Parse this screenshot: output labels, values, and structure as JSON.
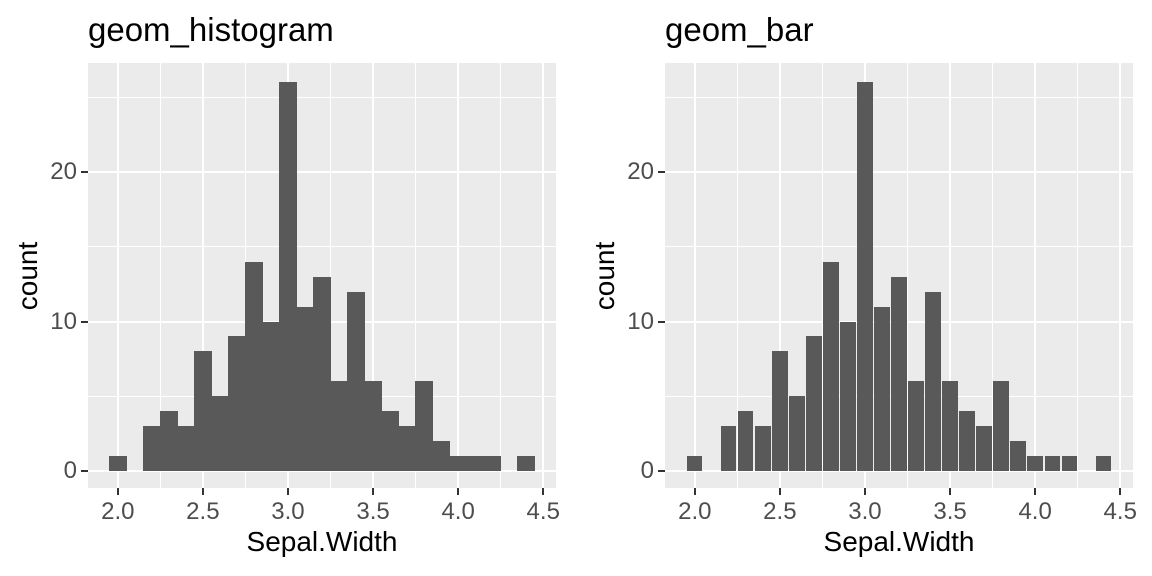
{
  "style": {
    "bar_color": "#595959",
    "panel_bg": "#EBEBEB",
    "grid_color": "#FFFFFF",
    "tick_mark_color": "#333333",
    "tick_label_color": "#4D4D4D",
    "title_color": "#000000",
    "background": "#FFFFFF"
  },
  "chart_data": [
    {
      "type": "bar",
      "subtype": "histogram",
      "title": "geom_histogram",
      "xlabel": "Sepal.Width",
      "ylabel": "count",
      "x": [
        2.0,
        2.1,
        2.2,
        2.3,
        2.4,
        2.5,
        2.6,
        2.7,
        2.8,
        2.9,
        3.0,
        3.1,
        3.2,
        3.3,
        3.4,
        3.5,
        3.6,
        3.7,
        3.8,
        3.9,
        4.0,
        4.1,
        4.2,
        4.3,
        4.4
      ],
      "counts": [
        1,
        0,
        3,
        4,
        3,
        8,
        5,
        9,
        14,
        10,
        26,
        11,
        13,
        6,
        12,
        6,
        4,
        3,
        6,
        2,
        1,
        1,
        1,
        0,
        1
      ],
      "bar_width": 0.1,
      "x_ticks": [
        2.0,
        2.5,
        3.0,
        3.5,
        4.0,
        4.5
      ],
      "x_minor": [
        2.25,
        2.75,
        3.25,
        3.75,
        4.25
      ],
      "y_ticks": [
        0,
        10,
        20
      ],
      "y_minor": [
        5,
        15,
        25
      ],
      "xlim": [
        1.825,
        4.575
      ],
      "ylim": [
        -1.1,
        27.3
      ],
      "grid": true,
      "legend": "none"
    },
    {
      "type": "bar",
      "subtype": "bar",
      "title": "geom_bar",
      "xlabel": "Sepal.Width",
      "ylabel": "count",
      "x": [
        2.0,
        2.1,
        2.2,
        2.3,
        2.4,
        2.5,
        2.6,
        2.7,
        2.8,
        2.9,
        3.0,
        3.1,
        3.2,
        3.3,
        3.4,
        3.5,
        3.6,
        3.7,
        3.8,
        3.9,
        4.0,
        4.1,
        4.2,
        4.3,
        4.4
      ],
      "counts": [
        1,
        0,
        3,
        4,
        3,
        8,
        5,
        9,
        14,
        10,
        26,
        11,
        13,
        6,
        12,
        6,
        4,
        3,
        6,
        2,
        1,
        1,
        1,
        0,
        1
      ],
      "bar_width": 0.09,
      "x_ticks": [
        2.0,
        2.5,
        3.0,
        3.5,
        4.0,
        4.5
      ],
      "x_minor": [
        2.25,
        2.75,
        3.25,
        3.75,
        4.25
      ],
      "y_ticks": [
        0,
        10,
        20
      ],
      "y_minor": [
        5,
        15,
        25
      ],
      "xlim": [
        1.825,
        4.575
      ],
      "ylim": [
        -1.1,
        27.3
      ],
      "grid": true,
      "legend": "none"
    }
  ]
}
